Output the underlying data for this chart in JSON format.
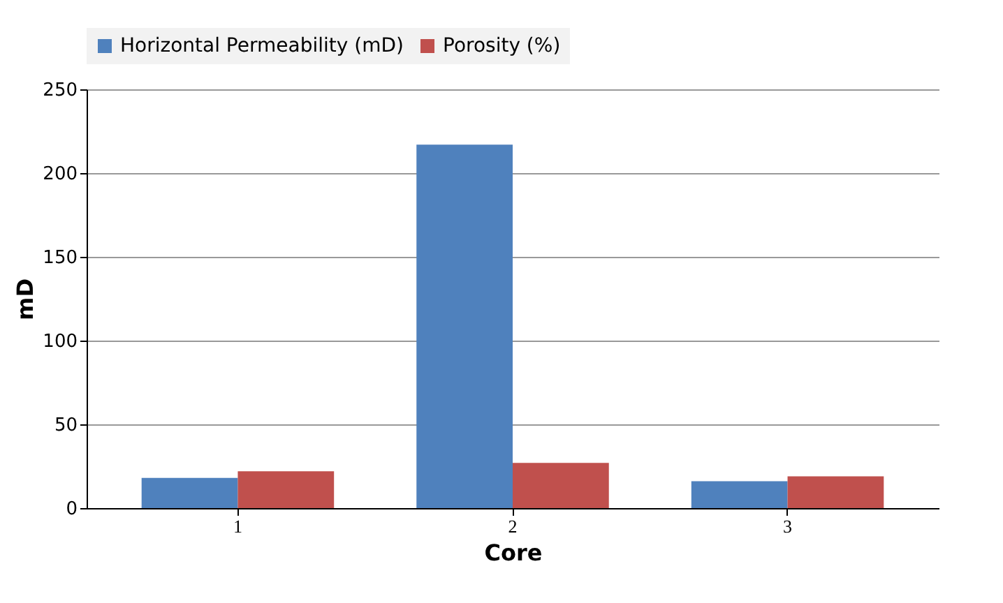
{
  "chart_data": {
    "type": "bar",
    "xlabel": "Core",
    "ylabel": "mD",
    "categories": [
      "1",
      "2",
      "3"
    ],
    "series": [
      {
        "name": "Horizontal Permeability (mD)",
        "color": "#4f81bd",
        "values": [
          18,
          217,
          16
        ]
      },
      {
        "name": "Porosity (%)",
        "color": "#c0504d",
        "values": [
          22,
          27,
          19
        ]
      }
    ],
    "ylim": [
      0,
      250
    ],
    "yticks": [
      0,
      50,
      100,
      150,
      200,
      250
    ],
    "grid": "y",
    "legend": "top"
  }
}
